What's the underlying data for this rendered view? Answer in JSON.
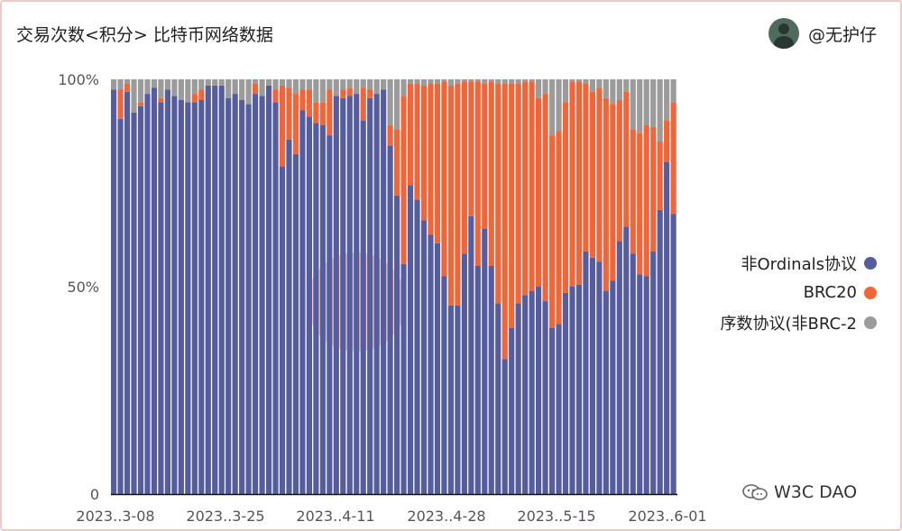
{
  "header": {
    "title": "交易次数<积分>  比特币网络数据",
    "author": "@无护仔"
  },
  "watermark": {
    "text": "W3C DAO",
    "icon": "wechat-icon"
  },
  "colors": {
    "non_ordinals": "#565d9f",
    "brc20": "#f26539",
    "ordinal_non_brc": "#9b9b9b"
  },
  "chart_data": {
    "type": "bar",
    "stacked": true,
    "normalized": true,
    "yticks": [
      "0",
      "50%",
      "100%"
    ],
    "ylim": [
      0,
      100
    ],
    "xticks": [
      "2023..3-08",
      "2023..3-25",
      "2023..4-11",
      "2023..4-28",
      "2023..5-15",
      "2023..6-01"
    ],
    "legend": {
      "position": "right",
      "entries": [
        "非Ordinals协议",
        "BRC20",
        "序数协议(非BRC-2"
      ]
    },
    "series": [
      {
        "name": "非Ordinals协议",
        "values": [
          97.5,
          90.5,
          97,
          92,
          93.5,
          96.5,
          98,
          94.5,
          97.5,
          96,
          95,
          94.5,
          94.5,
          95,
          98.5,
          98.5,
          98.5,
          95.5,
          96.5,
          95,
          94,
          96.5,
          96,
          98.5,
          94.5,
          79,
          85.5,
          82,
          92.5,
          91,
          89.5,
          89,
          86.5,
          96,
          95.5,
          96,
          96.5,
          90,
          95.5,
          96.5,
          97.5,
          84,
          72,
          55.5,
          74.5,
          71,
          66,
          62.5,
          60.5,
          52.5,
          45.5,
          45.5,
          58,
          67,
          55,
          64,
          55,
          46,
          32.5,
          40,
          46,
          48,
          49,
          50,
          46.5,
          40,
          41,
          48.5,
          50,
          50.5,
          58.5,
          57,
          56,
          49,
          51.5,
          61,
          64.5,
          58,
          53,
          52.5,
          58.5,
          68.5,
          80,
          67.5
        ]
      },
      {
        "name": "BRC20",
        "values": [
          0,
          7,
          2,
          0,
          1,
          0,
          0,
          1,
          0,
          0,
          0,
          0,
          2,
          2.5,
          0,
          0,
          0,
          0,
          0,
          0,
          0,
          2.5,
          0,
          0,
          3,
          19.5,
          12.5,
          14.5,
          5,
          6.5,
          5,
          5.5,
          11,
          0,
          2,
          2,
          0,
          8,
          2,
          0,
          0,
          5,
          16,
          40.5,
          24.5,
          28,
          32.5,
          36.5,
          38.5,
          47,
          53,
          53.5,
          41.5,
          32.5,
          44.5,
          35,
          44.5,
          53,
          66.5,
          59,
          53,
          51.5,
          50.5,
          45.5,
          50,
          46.5,
          46.5,
          46,
          49.5,
          49,
          40.5,
          40,
          42,
          46.5,
          42.5,
          34,
          32.5,
          30,
          34,
          36.5,
          30,
          16.5,
          10,
          27
        ]
      },
      {
        "name": "序数协议(非BRC-2",
        "values": [
          2.5,
          2.5,
          1,
          8,
          5.5,
          3.5,
          2,
          4.5,
          2.5,
          4,
          5,
          5.5,
          3.5,
          2.5,
          1.5,
          1.5,
          1.5,
          4.5,
          3.5,
          5,
          6,
          1,
          4,
          1.5,
          2.5,
          1.5,
          2,
          3.5,
          2.5,
          2.5,
          5.5,
          5.5,
          2.5,
          4,
          2.5,
          2,
          3.5,
          2,
          2.5,
          3.5,
          2.5,
          11,
          12,
          4,
          1,
          1,
          1.5,
          1,
          1,
          0.5,
          1.5,
          1,
          0.5,
          0.5,
          0.5,
          1,
          0.5,
          1,
          1,
          1,
          1,
          0.5,
          0.5,
          4.5,
          3.5,
          13.5,
          12.5,
          5.5,
          0.5,
          0.5,
          1,
          3,
          2,
          4.5,
          6,
          5,
          3,
          12,
          13,
          11,
          11.5,
          15,
          10,
          5.5
        ]
      }
    ]
  }
}
